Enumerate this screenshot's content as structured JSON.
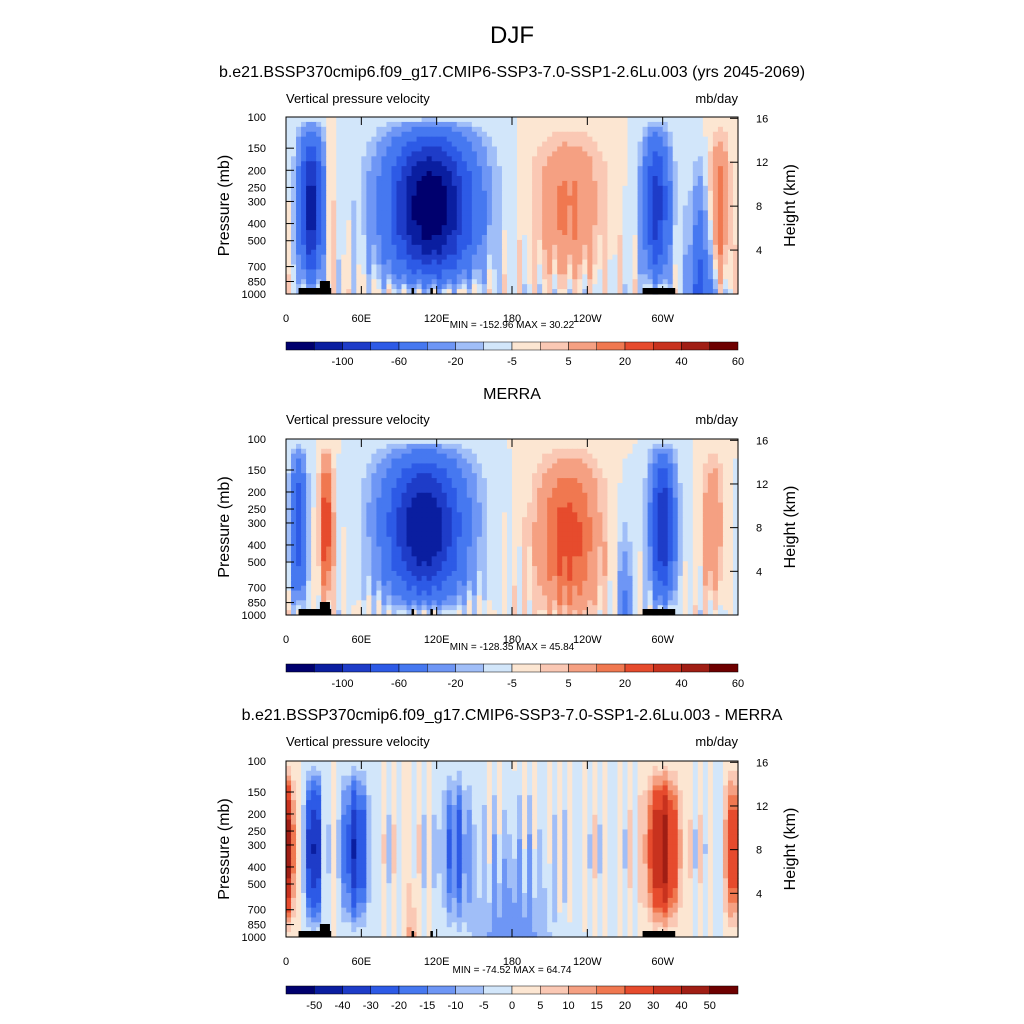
{
  "title": "DJF",
  "chart_data": [
    {
      "type": "heatmap",
      "title": "b.e21.BSSP370cmip6.f09_g17.CMIP6-SSP3-7.0-SSP1-2.6Lu.003 (yrs 2045-2069)",
      "variable": "Vertical pressure velocity",
      "units": "mb/day",
      "ylabel": "Pressure (mb)",
      "y2label": "Height (km)",
      "x_ticks": [
        "0",
        "60E",
        "120E",
        "180",
        "120W",
        "60W"
      ],
      "y_ticks": [
        "100",
        "150",
        "200",
        "250",
        "300",
        "400",
        "500",
        "700",
        "850",
        "1000"
      ],
      "y2_ticks": [
        "16",
        "12",
        "8",
        "4"
      ],
      "minmax_text": "MIN = -152.96  MAX =  30.22",
      "min": -152.96,
      "max": 30.22,
      "colorbar_labels": [
        "-100",
        "-60",
        "-20",
        "-5",
        "5",
        "20",
        "40",
        "60"
      ],
      "colorbar_levels": 16
    },
    {
      "type": "heatmap",
      "title": "MERRA",
      "variable": "Vertical pressure velocity",
      "units": "mb/day",
      "ylabel": "Pressure (mb)",
      "y2label": "Height (km)",
      "x_ticks": [
        "0",
        "60E",
        "120E",
        "180",
        "120W",
        "60W"
      ],
      "y_ticks": [
        "100",
        "150",
        "200",
        "250",
        "300",
        "400",
        "500",
        "700",
        "850",
        "1000"
      ],
      "y2_ticks": [
        "16",
        "12",
        "8",
        "4"
      ],
      "minmax_text": "MIN = -128.35  MAX =  45.84",
      "min": -128.35,
      "max": 45.84,
      "colorbar_labels": [
        "-100",
        "-60",
        "-20",
        "-5",
        "5",
        "20",
        "40",
        "60"
      ],
      "colorbar_levels": 16
    },
    {
      "type": "heatmap",
      "title": "b.e21.BSSP370cmip6.f09_g17.CMIP6-SSP3-7.0-SSP1-2.6Lu.003 - MERRA",
      "variable": "Vertical pressure velocity",
      "units": "mb/day",
      "ylabel": "Pressure (mb)",
      "y2label": "Height (km)",
      "x_ticks": [
        "0",
        "60E",
        "120E",
        "180",
        "120W",
        "60W"
      ],
      "y_ticks": [
        "100",
        "150",
        "200",
        "250",
        "300",
        "400",
        "500",
        "700",
        "850",
        "1000"
      ],
      "y2_ticks": [
        "16",
        "12",
        "8",
        "4"
      ],
      "minmax_text": "MIN = -74.52  MAX =  64.74",
      "min": -74.52,
      "max": 64.74,
      "colorbar_labels": [
        "-50",
        "-40",
        "-30",
        "-20",
        "-15",
        "-10",
        "-5",
        "0",
        "5",
        "10",
        "15",
        "20",
        "30",
        "40",
        "50"
      ],
      "colorbar_levels": 16
    }
  ],
  "colors": {
    "palette": [
      "#00006e",
      "#0a1ea0",
      "#1e3cc8",
      "#2d5ae6",
      "#4678f0",
      "#6e96f5",
      "#a0bef8",
      "#d2e6fa",
      "#fce6d2",
      "#fac8b4",
      "#f5a082",
      "#f07850",
      "#e64b2d",
      "#c8321e",
      "#a01e14",
      "#6e0000"
    ],
    "land": "#000000"
  }
}
